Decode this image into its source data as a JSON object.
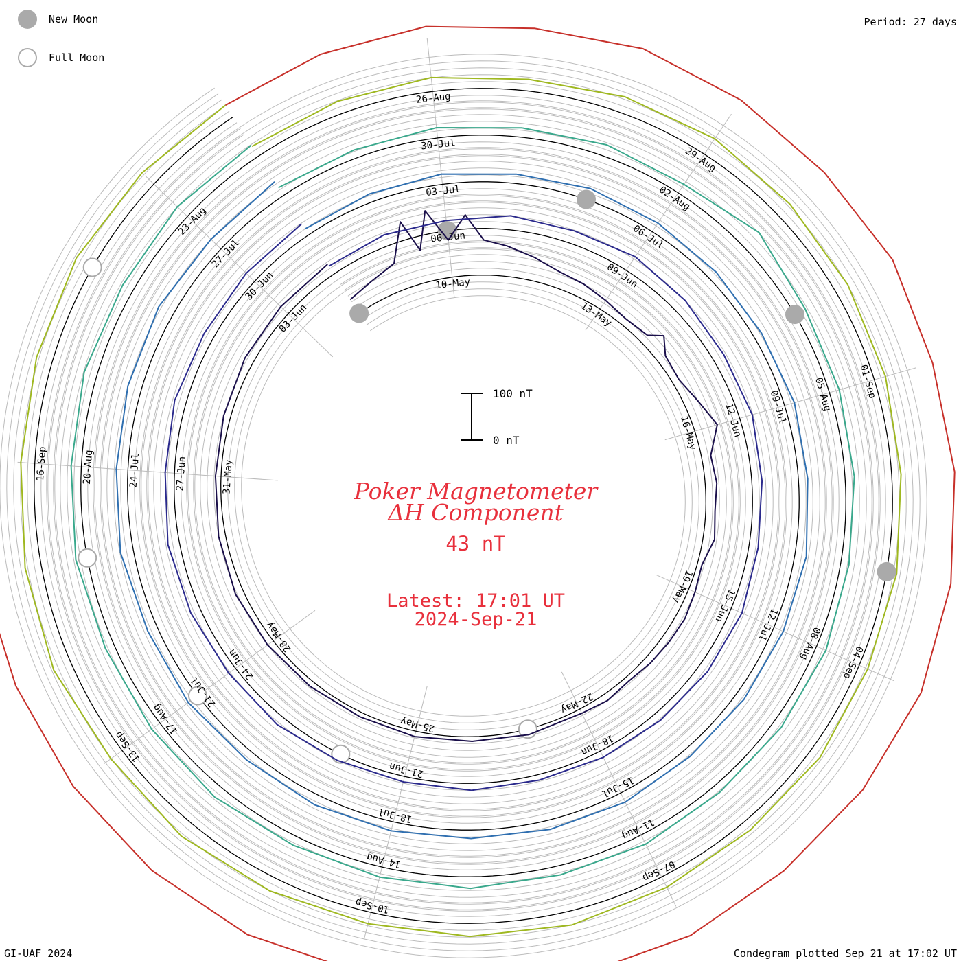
{
  "period_label": "Period: 27 days",
  "legend": {
    "new_moon": {
      "label": "New Moon",
      "color": "#aaaaaa"
    },
    "full_moon": {
      "label": "Full Moon",
      "color": "#aaaaaa"
    }
  },
  "title_line1": "Poker Magnetometer",
  "title_line2": "ΔH Component",
  "current_value": "43 nT",
  "latest_label": "Latest: 17:01 UT",
  "latest_date": "2024-Sep-21",
  "credit": "GI-UAF 2024",
  "plotted_label": "Condegram plotted Sep 21 at 17:02 UT",
  "colors": {
    "text_accent": "#e8303c",
    "grid": "#bbbbbb",
    "baseline": "#000000"
  },
  "chart_data": {
    "type": "line",
    "period_days": 27,
    "scale_bar": {
      "top_label": "100 nT",
      "bottom_label": "0 nT"
    },
    "date_labels": [
      {
        "text": "10-May",
        "cycle": 0,
        "day": 0
      },
      {
        "text": "13-May",
        "cycle": 0,
        "day": 3
      },
      {
        "text": "16-May",
        "cycle": 0,
        "day": 6
      },
      {
        "text": "19-May",
        "cycle": 0,
        "day": 9
      },
      {
        "text": "22-May",
        "cycle": 0,
        "day": 12
      },
      {
        "text": "25-May",
        "cycle": 0,
        "day": 15
      },
      {
        "text": "28-May",
        "cycle": 0,
        "day": 18
      },
      {
        "text": "31-May",
        "cycle": 0,
        "day": 21
      },
      {
        "text": "03-Jun",
        "cycle": 0,
        "day": 24
      },
      {
        "text": "06-Jun",
        "cycle": 1,
        "day": 0
      },
      {
        "text": "09-Jun",
        "cycle": 1,
        "day": 3
      },
      {
        "text": "12-Jun",
        "cycle": 1,
        "day": 6
      },
      {
        "text": "15-Jun",
        "cycle": 1,
        "day": 9
      },
      {
        "text": "18-Jun",
        "cycle": 1,
        "day": 12
      },
      {
        "text": "21-Jun",
        "cycle": 1,
        "day": 15
      },
      {
        "text": "24-Jun",
        "cycle": 1,
        "day": 18
      },
      {
        "text": "27-Jun",
        "cycle": 1,
        "day": 21
      },
      {
        "text": "30-Jun",
        "cycle": 1,
        "day": 24
      },
      {
        "text": "03-Jul",
        "cycle": 2,
        "day": 0
      },
      {
        "text": "06-Jul",
        "cycle": 2,
        "day": 3
      },
      {
        "text": "09-Jul",
        "cycle": 2,
        "day": 6
      },
      {
        "text": "12-Jul",
        "cycle": 2,
        "day": 9
      },
      {
        "text": "15-Jul",
        "cycle": 2,
        "day": 12
      },
      {
        "text": "18-Jul",
        "cycle": 2,
        "day": 15
      },
      {
        "text": "21-Jul",
        "cycle": 2,
        "day": 18
      },
      {
        "text": "24-Jul",
        "cycle": 2,
        "day": 21
      },
      {
        "text": "27-Jul",
        "cycle": 2,
        "day": 24
      },
      {
        "text": "30-Jul",
        "cycle": 3,
        "day": 0
      },
      {
        "text": "02-Aug",
        "cycle": 3,
        "day": 3
      },
      {
        "text": "05-Aug",
        "cycle": 3,
        "day": 6
      },
      {
        "text": "08-Aug",
        "cycle": 3,
        "day": 9
      },
      {
        "text": "11-Aug",
        "cycle": 3,
        "day": 12
      },
      {
        "text": "14-Aug",
        "cycle": 3,
        "day": 15
      },
      {
        "text": "17-Aug",
        "cycle": 3,
        "day": 18
      },
      {
        "text": "20-Aug",
        "cycle": 3,
        "day": 21
      },
      {
        "text": "23-Aug",
        "cycle": 3,
        "day": 24
      },
      {
        "text": "26-Aug",
        "cycle": 4,
        "day": 0
      },
      {
        "text": "29-Aug",
        "cycle": 4,
        "day": 3
      },
      {
        "text": "01-Sep",
        "cycle": 4,
        "day": 6
      },
      {
        "text": "04-Sep",
        "cycle": 4,
        "day": 9
      },
      {
        "text": "07-Sep",
        "cycle": 4,
        "day": 12
      },
      {
        "text": "10-Sep",
        "cycle": 4,
        "day": 15
      },
      {
        "text": "13-Sep",
        "cycle": 4,
        "day": 18
      },
      {
        "text": "16-Sep",
        "cycle": 4,
        "day": 21
      }
    ],
    "series": [
      {
        "start": "2024-05-08",
        "color": "#1a0f4a",
        "points": [
          [
            0,
            35
          ],
          [
            0.5,
            45
          ],
          [
            1,
            60
          ],
          [
            1.3,
            140
          ],
          [
            1.5,
            70
          ],
          [
            1.7,
            150
          ],
          [
            2,
            80
          ],
          [
            2.3,
            130
          ],
          [
            2.6,
            75
          ],
          [
            3,
            65
          ],
          [
            3.5,
            50
          ],
          [
            4,
            35
          ],
          [
            4.5,
            30
          ],
          [
            5,
            22
          ],
          [
            5.5,
            15
          ],
          [
            6,
            20
          ],
          [
            6.2,
            45
          ],
          [
            6.5,
            20
          ],
          [
            7,
            15
          ],
          [
            7.5,
            30
          ],
          [
            8,
            50
          ],
          [
            8.5,
            20
          ],
          [
            9,
            25
          ],
          [
            9.5,
            20
          ],
          [
            10,
            25
          ],
          [
            10.5,
            10
          ],
          [
            11,
            15
          ],
          [
            11.5,
            20
          ],
          [
            12,
            18
          ],
          [
            12.5,
            15
          ],
          [
            13,
            10
          ],
          [
            13.5,
            15
          ],
          [
            14,
            10
          ],
          [
            15,
            12
          ],
          [
            16,
            10
          ],
          [
            17,
            12
          ],
          [
            18,
            10
          ],
          [
            19,
            12
          ],
          [
            20,
            15
          ],
          [
            21,
            18
          ],
          [
            22,
            15
          ],
          [
            23,
            12
          ],
          [
            24,
            15
          ],
          [
            25,
            20
          ],
          [
            26,
            22
          ],
          [
            27,
            25
          ]
        ]
      },
      {
        "start": "2024-06-04",
        "color": "#2b2a8c",
        "points": [
          [
            0,
            20
          ],
          [
            1,
            25
          ],
          [
            2,
            22
          ],
          [
            3,
            30
          ],
          [
            4,
            28
          ],
          [
            5,
            35
          ],
          [
            6,
            30
          ],
          [
            7,
            25
          ],
          [
            8,
            28
          ],
          [
            9,
            22
          ],
          [
            10,
            20
          ],
          [
            11,
            25
          ],
          [
            12,
            22
          ],
          [
            13,
            18
          ],
          [
            14,
            15
          ],
          [
            15,
            12
          ],
          [
            16,
            15
          ],
          [
            17,
            12
          ],
          [
            18,
            15
          ],
          [
            19,
            20
          ],
          [
            20,
            18
          ],
          [
            21,
            22
          ],
          [
            22,
            25
          ],
          [
            23,
            20
          ],
          [
            24,
            25
          ],
          [
            25,
            22
          ],
          [
            26,
            25
          ],
          [
            27,
            28
          ]
        ]
      },
      {
        "start": "2024-07-01",
        "color": "#2f6fb0",
        "points": [
          [
            0,
            15
          ],
          [
            1,
            18
          ],
          [
            2,
            22
          ],
          [
            3,
            20
          ],
          [
            4,
            25
          ],
          [
            5,
            22
          ],
          [
            6,
            20
          ],
          [
            7,
            18
          ],
          [
            8,
            22
          ],
          [
            9,
            20
          ],
          [
            10,
            25
          ],
          [
            11,
            22
          ],
          [
            12,
            20
          ],
          [
            13,
            18
          ],
          [
            14,
            22
          ],
          [
            15,
            20
          ],
          [
            16,
            18
          ],
          [
            17,
            20
          ],
          [
            18,
            22
          ],
          [
            19,
            20
          ],
          [
            20,
            25
          ],
          [
            21,
            22
          ],
          [
            22,
            28
          ],
          [
            23,
            25
          ],
          [
            24,
            30
          ],
          [
            25,
            35
          ],
          [
            26,
            30
          ],
          [
            27,
            35
          ]
        ]
      },
      {
        "start": "2024-07-28",
        "color": "#3aa88c",
        "points": [
          [
            0,
            20
          ],
          [
            1,
            18
          ],
          [
            2,
            22
          ],
          [
            3,
            20
          ],
          [
            4,
            25
          ],
          [
            5,
            22
          ],
          [
            6,
            45
          ],
          [
            7,
            25
          ],
          [
            8,
            22
          ],
          [
            9,
            20
          ],
          [
            10,
            18
          ],
          [
            11,
            22
          ],
          [
            12,
            20
          ],
          [
            13,
            18
          ],
          [
            14,
            22
          ],
          [
            15,
            20
          ],
          [
            16,
            25
          ],
          [
            17,
            22
          ],
          [
            18,
            20
          ],
          [
            19,
            25
          ],
          [
            20,
            22
          ],
          [
            21,
            20
          ],
          [
            22,
            25
          ],
          [
            23,
            22
          ],
          [
            24,
            28
          ],
          [
            25,
            25
          ],
          [
            26,
            30
          ],
          [
            27,
            28
          ]
        ]
      },
      {
        "start": "2024-08-24",
        "color": "#9fb820",
        "points": [
          [
            0,
            25
          ],
          [
            1,
            28
          ],
          [
            2,
            30
          ],
          [
            3,
            25
          ],
          [
            4,
            35
          ],
          [
            5,
            40
          ],
          [
            6,
            35
          ],
          [
            7,
            30
          ],
          [
            8,
            25
          ],
          [
            9,
            20
          ],
          [
            10,
            22
          ],
          [
            11,
            20
          ],
          [
            12,
            25
          ],
          [
            13,
            22
          ],
          [
            14,
            25
          ],
          [
            15,
            30
          ],
          [
            16,
            28
          ],
          [
            17,
            25
          ],
          [
            18,
            30
          ],
          [
            19,
            35
          ],
          [
            20,
            30
          ],
          [
            21,
            40
          ],
          [
            22,
            35
          ],
          [
            23,
            30
          ],
          [
            24,
            35
          ],
          [
            25,
            40
          ],
          [
            26,
            35
          ],
          [
            27,
            30
          ]
        ]
      },
      {
        "start": "2024-09-20",
        "color": "#c7302a",
        "points": [
          [
            0,
            30
          ],
          [
            1,
            35
          ],
          [
            2,
            40
          ],
          [
            3,
            35
          ],
          [
            4,
            45
          ],
          [
            5,
            40
          ],
          [
            6,
            35
          ],
          [
            7,
            40
          ],
          [
            8,
            30
          ],
          [
            9,
            35
          ],
          [
            10,
            40
          ],
          [
            11,
            45
          ],
          [
            12,
            40
          ],
          [
            13,
            35
          ],
          [
            14,
            40
          ],
          [
            15,
            38
          ],
          [
            16,
            35
          ],
          [
            17,
            30
          ],
          [
            18,
            35
          ],
          [
            19,
            32
          ],
          [
            20,
            30
          ],
          [
            21,
            28
          ],
          [
            22,
            30
          ]
        ]
      }
    ],
    "moons": [
      {
        "phase": "new",
        "date": "2024-05-08"
      },
      {
        "phase": "full",
        "date": "2024-05-23"
      },
      {
        "phase": "new",
        "date": "2024-06-06"
      },
      {
        "phase": "full",
        "date": "2024-06-22"
      },
      {
        "phase": "new",
        "date": "2024-07-05"
      },
      {
        "phase": "full",
        "date": "2024-07-21"
      },
      {
        "phase": "new",
        "date": "2024-08-04"
      },
      {
        "phase": "full",
        "date": "2024-08-19"
      },
      {
        "phase": "new",
        "date": "2024-09-03"
      },
      {
        "phase": "full",
        "date": "2024-09-18"
      }
    ]
  }
}
